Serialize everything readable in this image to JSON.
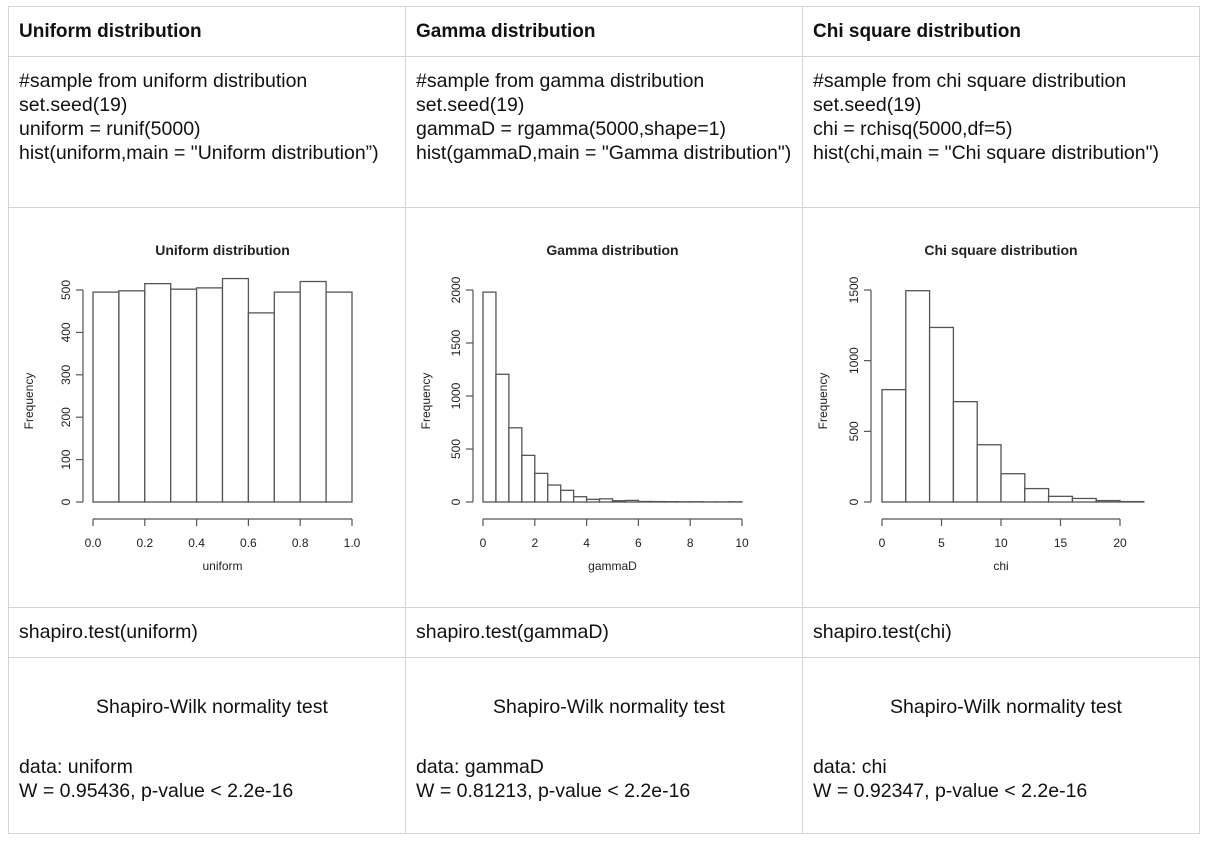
{
  "columns": [
    {
      "heading": "Uniform distribution",
      "code": "#sample from uniform distribution\nset.seed(19)\nuniform = runif(5000)\nhist(uniform,main = \"Uniform distribution”)",
      "test_call": "shapiro.test(uniform)",
      "test_output": {
        "title": "Shapiro-Wilk normality test",
        "data_line": "data:  uniform",
        "result_line": "W = 0.95436, p-value < 2.2e-16"
      }
    },
    {
      "heading": "Gamma distribution",
      "code": "#sample from gamma distribution\nset.seed(19)\ngammaD = rgamma(5000,shape=1)\nhist(gammaD,main = \"Gamma distribution\")",
      "test_call": "shapiro.test(gammaD)",
      "test_output": {
        "title": "Shapiro-Wilk normality test",
        "data_line": "data:  gammaD",
        "result_line": "W = 0.81213, p-value < 2.2e-16"
      }
    },
    {
      "heading": "Chi square distribution",
      "code": "#sample from chi square distribution\nset.seed(19)\nchi = rchisq(5000,df=5)\nhist(chi,main = \"Chi square distribution\")",
      "test_call": "shapiro.test(chi)",
      "test_output": {
        "title": "Shapiro-Wilk normality test",
        "data_line": "data:  chi",
        "result_line": "W = 0.92347, p-value < 2.2e-16"
      }
    }
  ],
  "chart_data": [
    {
      "type": "bar",
      "title": "Uniform distribution",
      "xlabel": "uniform",
      "ylabel": "Frequency",
      "bin_edges": [
        0.0,
        0.1,
        0.2,
        0.3,
        0.4,
        0.5,
        0.6,
        0.7,
        0.8,
        0.9,
        1.0
      ],
      "values": [
        495,
        498,
        515,
        502,
        505,
        527,
        446,
        495,
        520,
        495
      ],
      "xticks": [
        0.0,
        0.2,
        0.4,
        0.6,
        0.8,
        1.0
      ],
      "xtick_labels": [
        "0.0",
        "0.2",
        "0.4",
        "0.6",
        "0.8",
        "1.0"
      ],
      "yticks": [
        0,
        100,
        200,
        300,
        400,
        500
      ],
      "xlim": [
        0,
        1
      ],
      "ylim": [
        0,
        527
      ],
      "grid": false,
      "legend": null
    },
    {
      "type": "bar",
      "title": "Gamma distribution",
      "xlabel": "gammaD",
      "ylabel": "Frequency",
      "bin_edges": [
        0,
        0.5,
        1,
        1.5,
        2,
        2.5,
        3,
        3.5,
        4,
        4.5,
        5,
        5.5,
        6,
        6.5,
        7,
        7.5,
        8,
        8.5,
        9,
        9.5,
        10
      ],
      "values": [
        1980,
        1205,
        700,
        440,
        270,
        160,
        110,
        50,
        25,
        30,
        12,
        15,
        5,
        4,
        3,
        2,
        2,
        1,
        1,
        2
      ],
      "xticks": [
        0,
        2,
        4,
        6,
        8,
        10
      ],
      "xtick_labels": [
        "0",
        "2",
        "4",
        "6",
        "8",
        "10"
      ],
      "yticks": [
        0,
        500,
        1000,
        1500,
        2000
      ],
      "xlim": [
        0,
        10
      ],
      "ylim": [
        0,
        2000
      ],
      "grid": false,
      "legend": null
    },
    {
      "type": "bar",
      "title": "Chi square distribution",
      "xlabel": "chi",
      "ylabel": "Frequency",
      "bin_edges": [
        0,
        2,
        4,
        6,
        8,
        10,
        12,
        14,
        16,
        18,
        20,
        22
      ],
      "values": [
        795,
        1495,
        1235,
        710,
        405,
        200,
        95,
        40,
        25,
        10,
        3
      ],
      "xticks": [
        0,
        5,
        10,
        15,
        20
      ],
      "xtick_labels": [
        "0",
        "5",
        "10",
        "15",
        "20"
      ],
      "yticks": [
        0,
        500,
        1000,
        1500
      ],
      "xlim": [
        0,
        22
      ],
      "ylim": [
        0,
        1500
      ],
      "grid": false,
      "legend": null
    }
  ]
}
